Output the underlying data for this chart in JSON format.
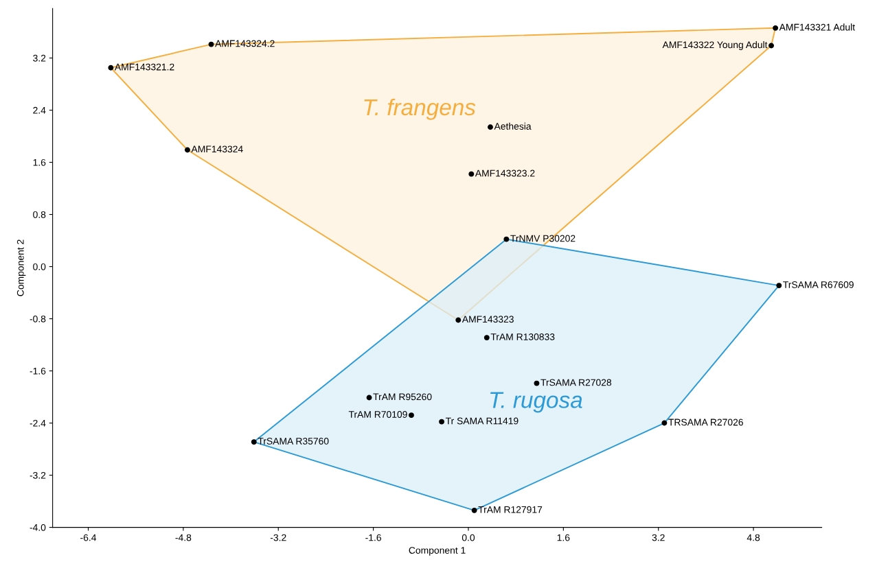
{
  "chart_data": {
    "type": "scatter",
    "xlabel": "Component 1",
    "ylabel": "Component 2",
    "xlim": [
      -7.0,
      5.95
    ],
    "ylim": [
      -4.0,
      3.96
    ],
    "xticks": [
      -6.4,
      -4.8,
      -3.2,
      -1.6,
      {
        "value": 0,
        "label": "0.0"
      },
      1.6,
      3.2,
      4.8
    ],
    "yticks": [
      {
        "value": -4,
        "label": "-4.0"
      },
      -3.2,
      -2.4,
      -1.6,
      -0.8,
      {
        "value": 0,
        "label": "0.0"
      },
      0.8,
      1.6,
      2.4,
      3.2
    ],
    "grid": false,
    "series": [
      {
        "type": "area",
        "marker": "none",
        "name": "T. frangens",
        "color": "#f5ae3d",
        "x": [
          -6.02,
          -4.33,
          5.17,
          5.1,
          -0.17,
          -4.73
        ],
        "values": [
          3.05,
          3.41,
          3.66,
          3.39,
          -0.82,
          1.79
        ]
      },
      {
        "type": "area",
        "marker": "none",
        "name": "T. rugosa",
        "color": "#2b9ad6",
        "x": [
          0.64,
          5.23,
          3.3,
          0.1,
          -3.61
        ],
        "values": [
          0.42,
          -0.29,
          -2.4,
          -3.74,
          -2.69
        ]
      },
      {
        "marker": "circle",
        "color": "#000000",
        "x": [
          -6.02,
          -4.33,
          -4.73,
          5.17,
          5.1,
          0.37,
          0.05,
          -0.17
        ],
        "values": [
          3.05,
          3.41,
          1.79,
          3.66,
          3.39,
          2.14,
          1.42,
          -0.82
        ]
      },
      {
        "marker": "circle",
        "color": "#000000",
        "x": [
          0.64,
          0.31,
          5.23,
          1.15,
          3.3,
          -1.67,
          -0.96,
          -0.45,
          -3.61,
          0.1
        ],
        "values": [
          0.42,
          -1.09,
          -0.29,
          -1.79,
          -2.4,
          -2.01,
          -2.28,
          -2.38,
          -2.69,
          -3.74
        ]
      }
    ],
    "annotations": [
      {
        "text": "AMF143321.2",
        "x": -6.02,
        "y": 3.05
      },
      {
        "text": "AMF143324.2",
        "x": -4.33,
        "y": 3.41
      },
      {
        "text": "AMF143324",
        "x": -4.73,
        "y": 1.79
      },
      {
        "text": "AMF143321 Adult",
        "x": 5.17,
        "y": 3.66
      },
      {
        "text": "AMF143322 Young Adult",
        "x": 5.1,
        "y": 3.39
      },
      {
        "text": "Aethesia",
        "x": 0.37,
        "y": 2.14
      },
      {
        "text": "AMF143323.2",
        "x": 0.05,
        "y": 1.42
      },
      {
        "text": "AMF143323",
        "x": -0.17,
        "y": -0.82
      },
      {
        "text": "TrNMV P30202",
        "x": 0.64,
        "y": 0.42
      },
      {
        "text": "TrAM R130833",
        "x": 0.31,
        "y": -1.09
      },
      {
        "text": "TrSAMA R67609",
        "x": 5.23,
        "y": -0.29
      },
      {
        "text": "TrSAMA R27028",
        "x": 1.15,
        "y": -1.79
      },
      {
        "text": "TRSAMA R27026",
        "x": 3.3,
        "y": -2.4
      },
      {
        "text": "TrAM R95260",
        "x": -1.67,
        "y": -2.01
      },
      {
        "text": "TrAM R70109",
        "x": -0.96,
        "y": -2.28
      },
      {
        "text": "Tr SAMA R11419",
        "x": -0.45,
        "y": -2.38
      },
      {
        "text": "TrSAMA R35760",
        "x": -3.61,
        "y": -2.69
      },
      {
        "text": "TrAM R127917",
        "x": 0.1,
        "y": -3.74
      }
    ]
  }
}
